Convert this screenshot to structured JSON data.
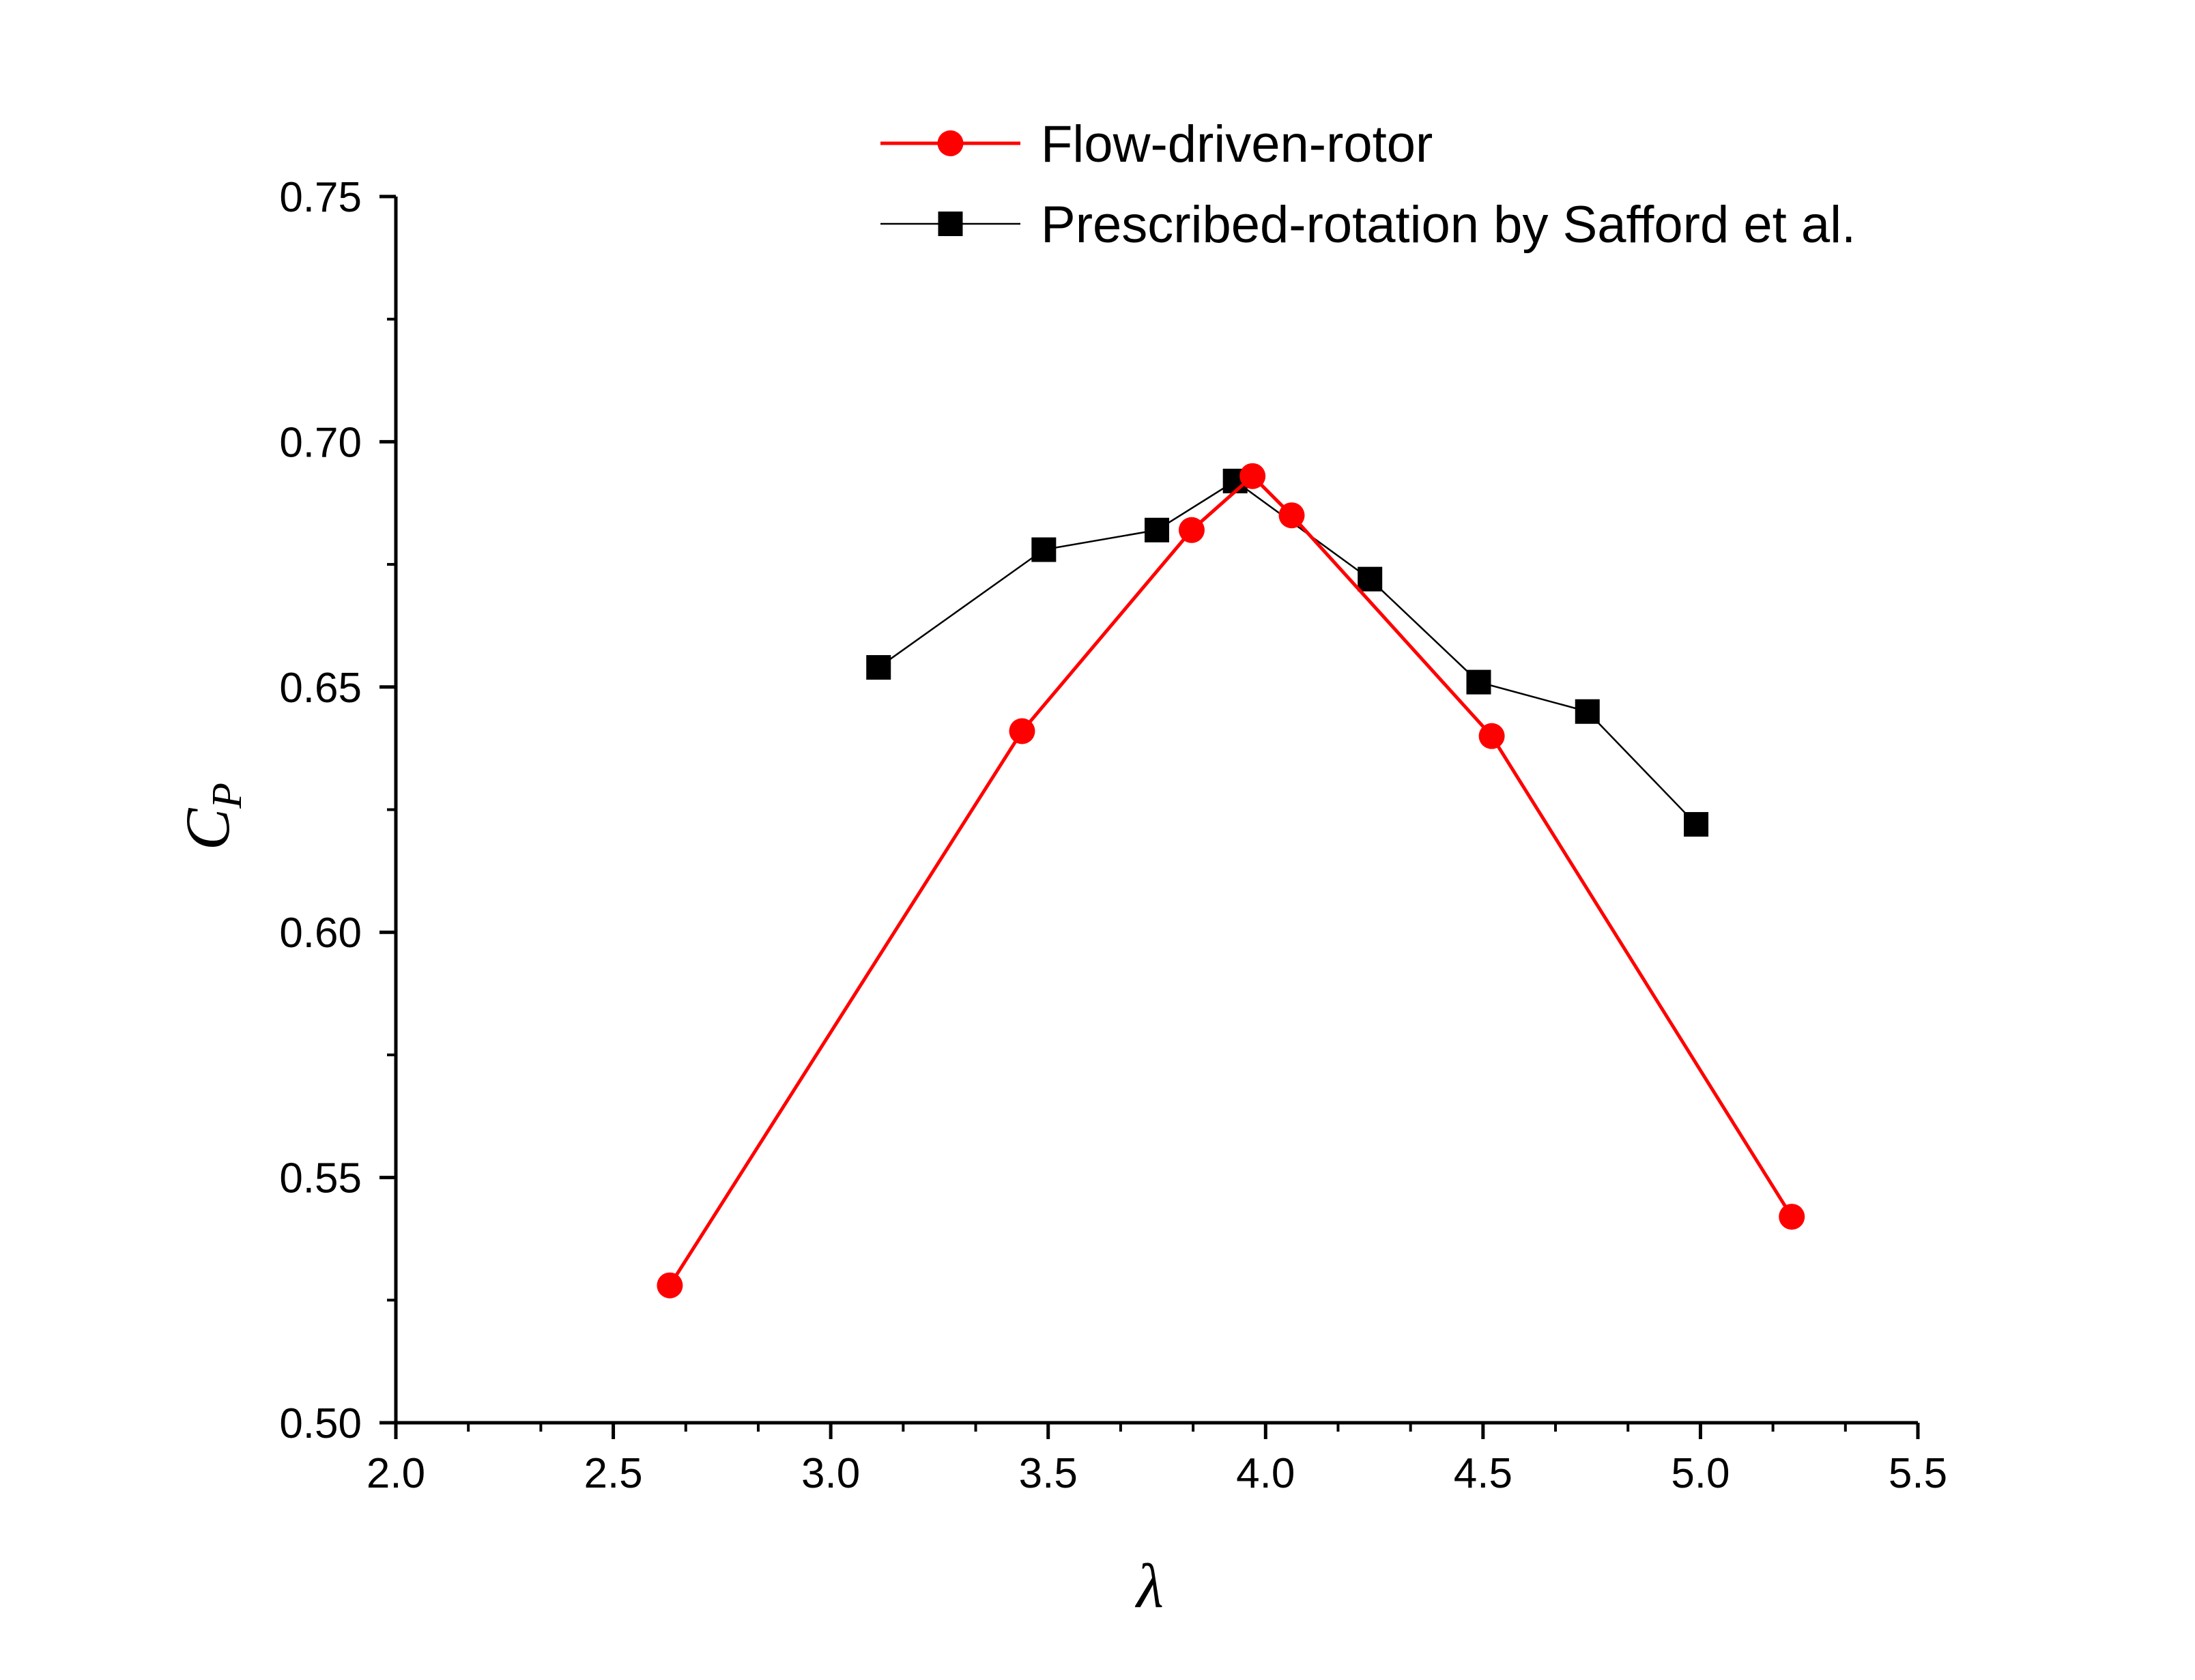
{
  "chart_data": {
    "type": "line",
    "title": "",
    "xlabel": "λ",
    "ylabel": {
      "main": "C",
      "subscript": "P"
    },
    "xlim": [
      2.0,
      5.5
    ],
    "ylim": [
      0.5,
      0.75
    ],
    "xticks": [
      "2.0",
      "2.5",
      "3.0",
      "3.5",
      "4.0",
      "4.5",
      "5.0",
      "5.5"
    ],
    "yticks": [
      "0.50",
      "0.55",
      "0.60",
      "0.65",
      "0.70",
      "0.75"
    ],
    "grid": false,
    "legend_position": "top-right",
    "series": [
      {
        "name": "Flow-driven-rotor",
        "color": "#ff0000",
        "marker": "circle",
        "x": [
          2.63,
          3.44,
          3.83,
          3.97,
          4.06,
          4.52,
          5.21
        ],
        "y": [
          0.528,
          0.641,
          0.682,
          0.693,
          0.685,
          0.64,
          0.542
        ]
      },
      {
        "name": "Prescribed-rotation by Safford et al.",
        "color": "#000000",
        "marker": "square",
        "x": [
          3.11,
          3.49,
          3.75,
          3.93,
          4.24,
          4.49,
          4.74,
          4.99
        ],
        "y": [
          0.654,
          0.678,
          0.682,
          0.692,
          0.672,
          0.651,
          0.645,
          0.622
        ]
      }
    ]
  }
}
